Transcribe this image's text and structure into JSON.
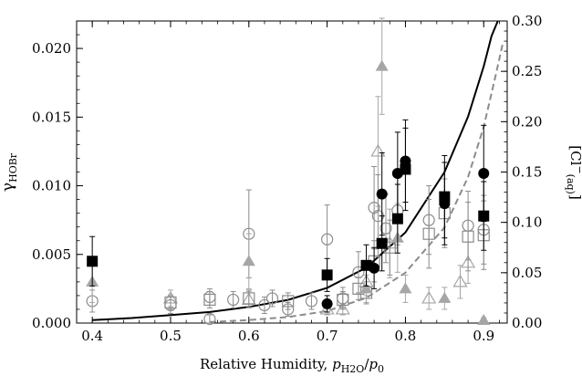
{
  "chart_data": {
    "type": "scatter",
    "title": "",
    "xlabel": "Relative Humidity, p_H2O/p_0",
    "ylabel": "γ_HOBr",
    "y2label": "[Cl⁻(aq)]",
    "xlim": [
      0.38,
      0.93
    ],
    "ylim": [
      0,
      0.022
    ],
    "y2lim": [
      0,
      0.3
    ],
    "x_ticks": [
      "0.4",
      "0.5",
      "0.6",
      "0.7",
      "0.8",
      "0.9"
    ],
    "y_ticks": [
      "0.000",
      "0.005",
      "0.010",
      "0.015",
      "0.020"
    ],
    "y2_ticks": [
      "0.00",
      "0.05",
      "0.10",
      "0.15",
      "0.20",
      "0.25",
      "0.30"
    ],
    "axis_label_parts": {
      "xlabel_prefix": "Relative Humidity,",
      "xlabel_p": "p",
      "xlabel_sub1": "H2O",
      "xlabel_slash": "/",
      "xlabel_sub2": "0",
      "ylabel_gamma": "γ",
      "ylabel_sub": "HOBr",
      "y2label_open": "[Cl",
      "y2label_sup": "−",
      "y2label_sub": "(aq)",
      "y2label_close": "]"
    },
    "grid": false,
    "colors": {
      "black": "#000000",
      "gray": "#8c8c8c",
      "light_gray": "#a6a6a6"
    },
    "series": [
      {
        "marker": "filled-square",
        "color": "#000000",
        "points": [
          {
            "x": 0.4,
            "y": 0.0045,
            "err": 0.0018
          },
          {
            "x": 0.7,
            "y": 0.0035,
            "err": 0.0012
          },
          {
            "x": 0.75,
            "y": 0.0042,
            "err": 0.0015
          },
          {
            "x": 0.77,
            "y": 0.0058,
            "err": 0.002
          },
          {
            "x": 0.79,
            "y": 0.0076,
            "err": 0.0025
          },
          {
            "x": 0.8,
            "y": 0.0112,
            "err": 0.003
          },
          {
            "x": 0.85,
            "y": 0.0092,
            "err": 0.003
          },
          {
            "x": 0.9,
            "y": 0.0078,
            "err": 0.0025
          }
        ]
      },
      {
        "marker": "filled-circle",
        "color": "#000000",
        "points": [
          {
            "x": 0.7,
            "y": 0.0014,
            "err": 0.0006
          },
          {
            "x": 0.76,
            "y": 0.004,
            "err": 0.0015
          },
          {
            "x": 0.77,
            "y": 0.0094,
            "err": 0.003
          },
          {
            "x": 0.79,
            "y": 0.0109,
            "err": 0.003
          },
          {
            "x": 0.8,
            "y": 0.0118,
            "err": 0.003
          },
          {
            "x": 0.85,
            "y": 0.0087,
            "err": 0.003
          },
          {
            "x": 0.9,
            "y": 0.0109,
            "err": 0.0035
          }
        ]
      },
      {
        "marker": "open-circle",
        "color": "#8c8c8c",
        "points": [
          {
            "x": 0.4,
            "y": 0.0016,
            "err": 0.0008
          },
          {
            "x": 0.5,
            "y": 0.0013,
            "err": 0.0006
          },
          {
            "x": 0.55,
            "y": 0.0019,
            "err": 0.0006
          },
          {
            "x": 0.55,
            "y": 0.0003,
            "err": 0.0003
          },
          {
            "x": 0.58,
            "y": 0.0017,
            "err": 0.0006
          },
          {
            "x": 0.6,
            "y": 0.0065,
            "err": 0.0032
          },
          {
            "x": 0.62,
            "y": 0.0013,
            "err": 0.0006
          },
          {
            "x": 0.63,
            "y": 0.0018,
            "err": 0.0006
          },
          {
            "x": 0.65,
            "y": 0.001,
            "err": 0.0005
          },
          {
            "x": 0.68,
            "y": 0.0016,
            "err": 0.0006
          },
          {
            "x": 0.7,
            "y": 0.0061,
            "err": 0.0025
          },
          {
            "x": 0.72,
            "y": 0.0018,
            "err": 0.0008
          },
          {
            "x": 0.74,
            "y": 0.0037,
            "err": 0.0015
          },
          {
            "x": 0.76,
            "y": 0.0084,
            "err": 0.003
          },
          {
            "x": 0.765,
            "y": 0.0078,
            "err": 0.003
          },
          {
            "x": 0.775,
            "y": 0.0069,
            "err": 0.0025
          },
          {
            "x": 0.79,
            "y": 0.0082,
            "err": 0.0025
          },
          {
            "x": 0.83,
            "y": 0.0075,
            "err": 0.0025
          },
          {
            "x": 0.88,
            "y": 0.0071,
            "err": 0.0025
          },
          {
            "x": 0.9,
            "y": 0.0068,
            "err": 0.0025
          }
        ]
      },
      {
        "marker": "open-square",
        "color": "#8c8c8c",
        "points": [
          {
            "x": 0.5,
            "y": 0.0015,
            "err": 0.0005
          },
          {
            "x": 0.55,
            "y": 0.0017,
            "err": 0.0006
          },
          {
            "x": 0.6,
            "y": 0.0018,
            "err": 0.0006
          },
          {
            "x": 0.65,
            "y": 0.0016,
            "err": 0.0006
          },
          {
            "x": 0.72,
            "y": 0.0017,
            "err": 0.0006
          },
          {
            "x": 0.74,
            "y": 0.0025,
            "err": 0.0008
          },
          {
            "x": 0.75,
            "y": 0.0022,
            "err": 0.0008
          },
          {
            "x": 0.76,
            "y": 0.0045,
            "err": 0.0015
          },
          {
            "x": 0.78,
            "y": 0.0055,
            "err": 0.002
          },
          {
            "x": 0.83,
            "y": 0.0065,
            "err": 0.0025
          },
          {
            "x": 0.85,
            "y": 0.008,
            "err": 0.0025
          },
          {
            "x": 0.88,
            "y": 0.0063,
            "err": 0.0025
          },
          {
            "x": 0.9,
            "y": 0.0064,
            "err": 0.0025
          }
        ]
      },
      {
        "marker": "filled-triangle",
        "color": "#a6a6a6",
        "points": [
          {
            "x": 0.4,
            "y": 0.003,
            "err": 0.0015
          },
          {
            "x": 0.6,
            "y": 0.0045,
            "err": 0.002
          },
          {
            "x": 0.75,
            "y": 0.0025,
            "err": 0.001
          },
          {
            "x": 0.77,
            "y": 0.0187,
            "err": 0.0035
          },
          {
            "x": 0.79,
            "y": 0.0062,
            "err": 0.0025
          },
          {
            "x": 0.8,
            "y": 0.0025,
            "err": 0.001
          },
          {
            "x": 0.85,
            "y": 0.0018,
            "err": 0.0008
          },
          {
            "x": 0.9,
            "y": 0.0002,
            "err": 0.0002
          }
        ]
      },
      {
        "marker": "open-triangle",
        "color": "#a6a6a6",
        "points": [
          {
            "x": 0.5,
            "y": 0.0018,
            "err": 0.0006
          },
          {
            "x": 0.6,
            "y": 0.0017,
            "err": 0.0006
          },
          {
            "x": 0.7,
            "y": 0.001,
            "err": 0.0004
          },
          {
            "x": 0.72,
            "y": 0.001,
            "err": 0.0004
          },
          {
            "x": 0.75,
            "y": 0.003,
            "err": 0.001
          },
          {
            "x": 0.765,
            "y": 0.0125,
            "err": 0.004
          },
          {
            "x": 0.78,
            "y": 0.0058,
            "err": 0.0025
          },
          {
            "x": 0.83,
            "y": 0.0018,
            "err": 0.0008
          },
          {
            "x": 0.87,
            "y": 0.003,
            "err": 0.0012
          },
          {
            "x": 0.88,
            "y": 0.0044,
            "err": 0.0015
          }
        ]
      }
    ],
    "curves": [
      {
        "style": "solid",
        "color": "#000000",
        "axis": "right",
        "points": [
          {
            "x": 0.4,
            "y": 0.003
          },
          {
            "x": 0.45,
            "y": 0.005
          },
          {
            "x": 0.5,
            "y": 0.008
          },
          {
            "x": 0.55,
            "y": 0.011
          },
          {
            "x": 0.6,
            "y": 0.016
          },
          {
            "x": 0.65,
            "y": 0.023
          },
          {
            "x": 0.7,
            "y": 0.035
          },
          {
            "x": 0.75,
            "y": 0.055
          },
          {
            "x": 0.8,
            "y": 0.09
          },
          {
            "x": 0.85,
            "y": 0.15
          },
          {
            "x": 0.88,
            "y": 0.205
          },
          {
            "x": 0.9,
            "y": 0.255
          },
          {
            "x": 0.91,
            "y": 0.285
          },
          {
            "x": 0.918,
            "y": 0.3
          }
        ]
      },
      {
        "style": "dashed",
        "color": "#8c8c8c",
        "axis": "right",
        "points": [
          {
            "x": 0.55,
            "y": 0.001
          },
          {
            "x": 0.6,
            "y": 0.003
          },
          {
            "x": 0.65,
            "y": 0.006
          },
          {
            "x": 0.7,
            "y": 0.012
          },
          {
            "x": 0.75,
            "y": 0.025
          },
          {
            "x": 0.8,
            "y": 0.05
          },
          {
            "x": 0.85,
            "y": 0.095
          },
          {
            "x": 0.88,
            "y": 0.145
          },
          {
            "x": 0.9,
            "y": 0.195
          },
          {
            "x": 0.915,
            "y": 0.245
          },
          {
            "x": 0.925,
            "y": 0.28
          }
        ]
      }
    ]
  }
}
